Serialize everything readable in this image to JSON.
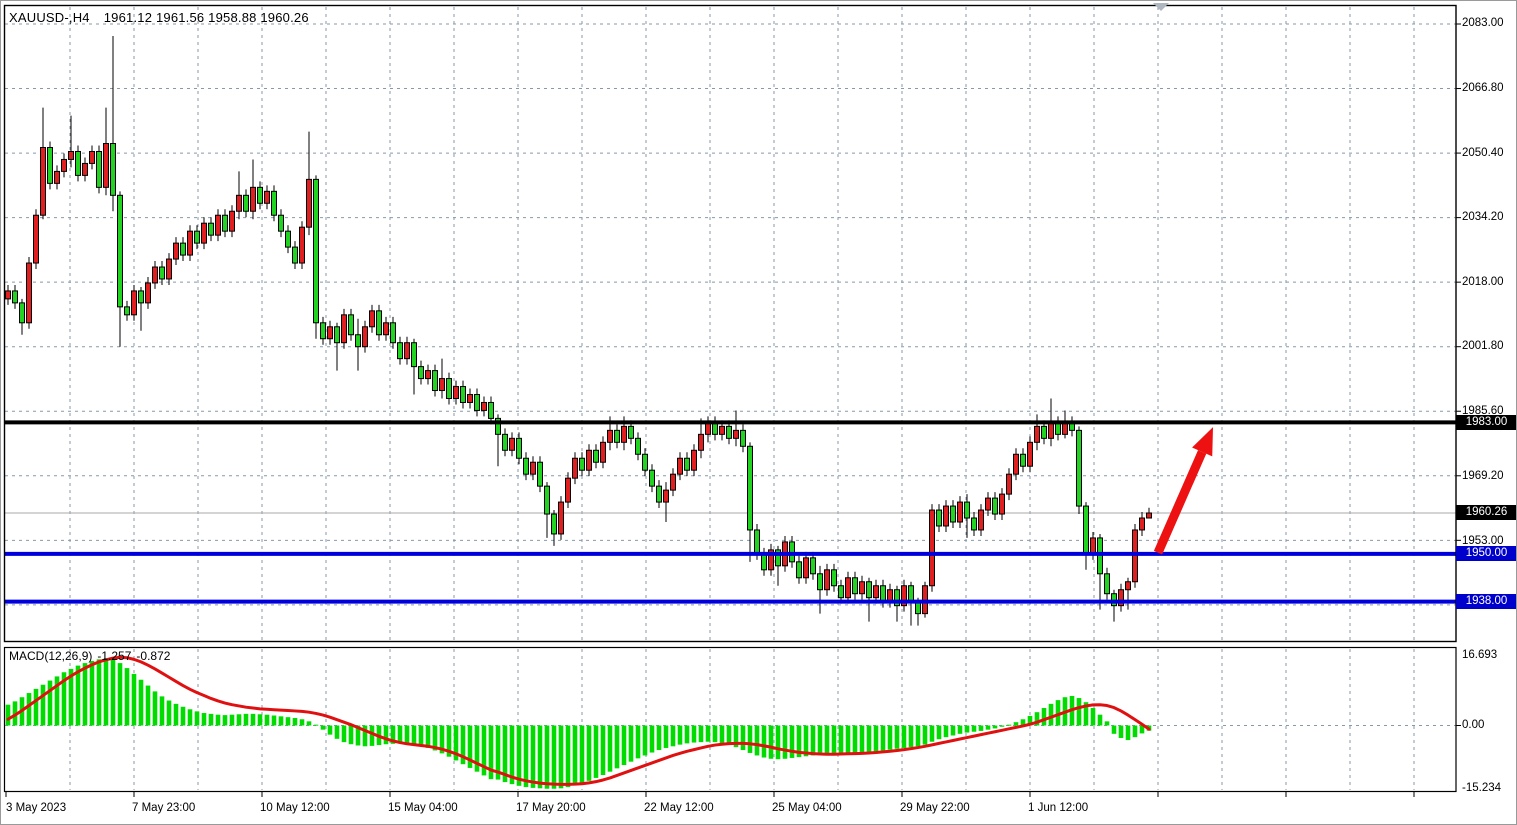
{
  "header": {
    "symbol": "XAUUSD-,H4",
    "ohlc": "1961.12 1961.56 1958.88 1960.26"
  },
  "macd_panel": {
    "label": "MACD(12,26,9)",
    "macd_value": "-1.257",
    "signal_value": "-0.872",
    "axis_labels": [
      {
        "text": "16.693",
        "value": 16.693
      },
      {
        "text": "0.00",
        "value": 0
      },
      {
        "text": "-15.234",
        "value": -15.234
      }
    ]
  },
  "price_axis": {
    "labels": [
      {
        "text": "2083.00",
        "price": 2083.0
      },
      {
        "text": "2066.80",
        "price": 2066.8
      },
      {
        "text": "2050.40",
        "price": 2050.4
      },
      {
        "text": "2034.20",
        "price": 2034.2
      },
      {
        "text": "2018.00",
        "price": 2018.0
      },
      {
        "text": "2001.80",
        "price": 2001.8
      },
      {
        "text": "1985.60",
        "price": 1985.6
      },
      {
        "text": "1969.20",
        "price": 1969.2
      },
      {
        "text": "1953.00",
        "price": 1953.0
      }
    ]
  },
  "price_markers": [
    {
      "text": "1983.00",
      "price": 1983.0,
      "type": "resistance-level",
      "bg": "#000000"
    },
    {
      "text": "1960.26",
      "price": 1960.26,
      "type": "current-price",
      "bg": "#000000"
    },
    {
      "text": "1950.00",
      "price": 1950.0,
      "type": "support-level",
      "bg": "#0000cc"
    },
    {
      "text": "1938.00",
      "price": 1938.0,
      "type": "support-level",
      "bg": "#0000cc"
    }
  ],
  "time_axis": {
    "labels": [
      "3 May 2023",
      "7 May 23:00",
      "10 May 12:00",
      "15 May 04:00",
      "17 May 20:00",
      "22 May 12:00",
      "25 May 04:00",
      "29 May 22:00",
      "1 Jun 12:00"
    ]
  },
  "chart_data": {
    "type": "candlestick",
    "symbol": "XAUUSD-",
    "timeframe": "H4",
    "title": "XAUUSD-,H4 1961.12 1961.56 1958.88 1960.26",
    "y_axis": {
      "top_gridline_price": 2083.0,
      "grid_step": 16.2,
      "visible_min": 1928.0,
      "visible_max": 2087.0
    },
    "macd_axis": {
      "max": 16.693,
      "zero": 0.0,
      "min": -15.234
    },
    "levels": [
      {
        "price": 1983.0,
        "color": "#000000",
        "width": 4,
        "label": "1983.00"
      },
      {
        "price": 1950.0,
        "color": "#0000dd",
        "width": 4,
        "label": "1950.00"
      },
      {
        "price": 1938.0,
        "color": "#0000dd",
        "width": 4,
        "label": "1938.00"
      }
    ],
    "current_price": 1960.26,
    "open_first": 2014,
    "closes": [
      2016,
      2013,
      2008,
      2023,
      2035,
      2052,
      2043,
      2046,
      2049,
      2051,
      2045,
      2048,
      2051,
      2042,
      2053,
      2040,
      2012,
      2010,
      2016,
      2013,
      2018,
      2022,
      2019,
      2024,
      2028,
      2025,
      2031,
      2028,
      2033,
      2030,
      2035,
      2031,
      2036,
      2040,
      2036,
      2042,
      2038,
      2041,
      2035,
      2031,
      2027,
      2023,
      2032,
      2044,
      2008,
      2004,
      2007,
      2003,
      2010,
      2005,
      2002,
      2007,
      2011,
      2005,
      2008,
      2003,
      1999,
      2003,
      1997,
      1994,
      1996,
      1991,
      1994,
      1989,
      1992,
      1988,
      1990,
      1986,
      1988,
      1984,
      1980,
      1976,
      1979,
      1974,
      1970,
      1973,
      1967,
      1960,
      1955,
      1963,
      1969,
      1974,
      1971,
      1976,
      1973,
      1978,
      1981,
      1978,
      1982,
      1979,
      1975,
      1971,
      1967,
      1963,
      1966,
      1970,
      1974,
      1971,
      1976,
      1980,
      1983,
      1980,
      1982,
      1979,
      1981,
      1977,
      1956,
      1950,
      1946,
      1951,
      1947,
      1953,
      1948,
      1944,
      1949,
      1945,
      1941,
      1946,
      1942,
      1939,
      1944,
      1940,
      1943,
      1939,
      1942,
      1938,
      1941,
      1937,
      1942,
      1938,
      1935,
      1942,
      1961,
      1957,
      1962,
      1958,
      1963,
      1959,
      1956,
      1961,
      1964,
      1960,
      1965,
      1970,
      1975,
      1972,
      1978,
      1982,
      1979,
      1983,
      1980,
      1983,
      1981,
      1962,
      1950,
      1954,
      1945,
      1940,
      1937,
      1941,
      1943,
      1956,
      1959,
      1960.26
    ],
    "wick_overrides": {
      "2": [
        2014,
        2005
      ],
      "5": [
        2062,
        2034
      ],
      "9": [
        2060,
        2047
      ],
      "14": [
        2062,
        2040
      ],
      "15": [
        2080,
        2036
      ],
      "16": [
        2041,
        2002
      ],
      "19": [
        2017,
        2006
      ],
      "33": [
        2046,
        2034
      ],
      "35": [
        2049,
        2034
      ],
      "43": [
        2056,
        2030
      ],
      "44": [
        2045,
        2004
      ],
      "47": [
        2008,
        1996
      ],
      "50": [
        2009,
        1996
      ],
      "58": [
        2004,
        1990
      ],
      "62": [
        1999,
        1989
      ],
      "70": [
        1985,
        1972
      ],
      "77": [
        1968,
        1954
      ],
      "78": [
        1961,
        1952
      ],
      "86": [
        1984.5,
        1976
      ],
      "88": [
        1984.5,
        1976
      ],
      "94": [
        1968,
        1958
      ],
      "99": [
        1984,
        1974
      ],
      "100": [
        1984.5,
        1978
      ],
      "104": [
        1986,
        1977
      ],
      "106": [
        1978,
        1948
      ],
      "110": [
        1952,
        1942
      ],
      "116": [
        1947,
        1935
      ],
      "123": [
        1944,
        1933
      ],
      "127": [
        1942,
        1933
      ],
      "129": [
        1943,
        1932
      ],
      "130": [
        1939,
        1932
      ],
      "131": [
        1943,
        1934
      ],
      "137": [
        1965,
        1954
      ],
      "147": [
        1985,
        1976
      ],
      "149": [
        1989,
        1977
      ],
      "151": [
        1986,
        1979
      ],
      "153": [
        1982,
        1960
      ],
      "154": [
        1963,
        1946
      ],
      "156": [
        1955,
        1936
      ],
      "158": [
        1941,
        1933
      ],
      "160": [
        1944,
        1936
      ],
      "163": [
        1961.56,
        1958.88
      ]
    },
    "trend_arrow": {
      "from_price": 1950.3,
      "to_price": 1981.8,
      "color": "#ee1111"
    },
    "macd": {
      "params": "12,26,9",
      "last_macd": -1.257,
      "last_signal": -0.872,
      "histogram": [
        5.0,
        5.8,
        6.8,
        7.8,
        8.8,
        9.8,
        10.8,
        11.8,
        12.8,
        13.6,
        14.4,
        15.0,
        15.5,
        15.9,
        16.2,
        16.0,
        15.0,
        13.8,
        12.4,
        11.0,
        9.6,
        8.2,
        7.0,
        6.0,
        5.2,
        4.5,
        3.9,
        3.4,
        3.0,
        2.8,
        2.6,
        2.5,
        2.6,
        2.7,
        2.8,
        2.8,
        2.7,
        2.6,
        2.4,
        2.2,
        2.0,
        1.8,
        1.5,
        1.0,
        0.2,
        -1.0,
        -2.2,
        -3.2,
        -4.0,
        -4.5,
        -4.8,
        -5.0,
        -4.9,
        -4.7,
        -4.5,
        -4.4,
        -4.2,
        -4.3,
        -4.6,
        -5.0,
        -5.4,
        -6.0,
        -6.7,
        -7.5,
        -8.4,
        -9.3,
        -10.2,
        -11.1,
        -12.0,
        -12.9,
        -13.0,
        -13.6,
        -14.1,
        -14.5,
        -14.8,
        -15.0,
        -15.1,
        -15.2,
        -15.2,
        -15.1,
        -14.8,
        -14.4,
        -13.9,
        -13.3,
        -12.6,
        -11.9,
        -11.1,
        -10.3,
        -9.5,
        -8.7,
        -7.9,
        -7.2,
        -6.5,
        -5.9,
        -5.4,
        -5.0,
        -4.6,
        -4.3,
        -4.1,
        -4.0,
        -3.9,
        -4.0,
        -4.2,
        -4.6,
        -5.2,
        -5.9,
        -6.6,
        -7.2,
        -7.7,
        -8.0,
        -8.1,
        -8.0,
        -7.8,
        -7.6,
        -7.4,
        -7.2,
        -7.1,
        -7.0,
        -6.9,
        -6.8,
        -6.7,
        -6.6,
        -6.5,
        -6.4,
        -6.2,
        -6.0,
        -5.8,
        -5.6,
        -5.4,
        -5.2,
        -5.0,
        -4.6,
        -3.9,
        -3.3,
        -2.8,
        -2.4,
        -2.0,
        -1.7,
        -1.5,
        -1.3,
        -1.0,
        -0.7,
        -0.3,
        0.2,
        0.8,
        1.5,
        2.3,
        3.2,
        4.2,
        5.2,
        6.1,
        6.8,
        7.1,
        6.6,
        5.6,
        4.2,
        2.6,
        1.0,
        -2.0,
        -3.0,
        -3.5,
        -2.8,
        -1.9,
        -1.257
      ],
      "signal": [
        1.5,
        2.5,
        3.6,
        4.8,
        6.0,
        7.2,
        8.4,
        9.6,
        10.8,
        11.9,
        12.9,
        13.8,
        14.6,
        15.3,
        15.8,
        16.2,
        16.4,
        16.3,
        15.9,
        15.3,
        14.5,
        13.6,
        12.6,
        11.6,
        10.6,
        9.6,
        8.7,
        7.9,
        7.2,
        6.5,
        5.9,
        5.4,
        5.0,
        4.7,
        4.4,
        4.2,
        4.0,
        3.9,
        3.8,
        3.7,
        3.6,
        3.5,
        3.4,
        3.2,
        2.9,
        2.5,
        2.0,
        1.4,
        0.8,
        0.2,
        -0.5,
        -1.2,
        -1.9,
        -2.6,
        -3.2,
        -3.7,
        -4.1,
        -4.4,
        -4.6,
        -4.8,
        -5.0,
        -5.3,
        -5.7,
        -6.2,
        -6.8,
        -7.5,
        -8.3,
        -9.1,
        -9.9,
        -10.7,
        -11.2,
        -11.8,
        -12.4,
        -12.9,
        -13.3,
        -13.6,
        -13.85,
        -14.0,
        -14.1,
        -14.15,
        -14.15,
        -14.1,
        -14.0,
        -13.8,
        -13.5,
        -13.1,
        -12.6,
        -12.0,
        -11.4,
        -10.8,
        -10.2,
        -9.6,
        -9.0,
        -8.4,
        -7.8,
        -7.2,
        -6.7,
        -6.2,
        -5.8,
        -5.4,
        -5.0,
        -4.7,
        -4.5,
        -4.35,
        -4.3,
        -4.3,
        -4.4,
        -4.6,
        -4.9,
        -5.2,
        -5.6,
        -5.9,
        -6.2,
        -6.45,
        -6.6,
        -6.75,
        -6.85,
        -6.9,
        -6.9,
        -6.85,
        -6.8,
        -6.75,
        -6.7,
        -6.6,
        -6.5,
        -6.35,
        -6.2,
        -6.0,
        -5.8,
        -5.55,
        -5.3,
        -5.0,
        -4.65,
        -4.3,
        -3.95,
        -3.6,
        -3.25,
        -2.9,
        -2.55,
        -2.2,
        -1.85,
        -1.5,
        -1.15,
        -0.8,
        -0.45,
        -0.1,
        0.3,
        0.8,
        1.4,
        2.0,
        2.6,
        3.2,
        3.8,
        4.3,
        4.7,
        4.95,
        5.0,
        4.8,
        4.3,
        3.5,
        2.5,
        1.4,
        0.3,
        -0.872
      ]
    },
    "colors": {
      "bull": "#e02020",
      "bear": "#22d322",
      "macd_bar": "#00dc00",
      "macd_signal": "#e01010",
      "grid": "#8799ab",
      "level_blue": "#0000dd",
      "level_black": "#000000",
      "current_price_line": "#a8a8a8",
      "background": "#ffffff"
    }
  }
}
